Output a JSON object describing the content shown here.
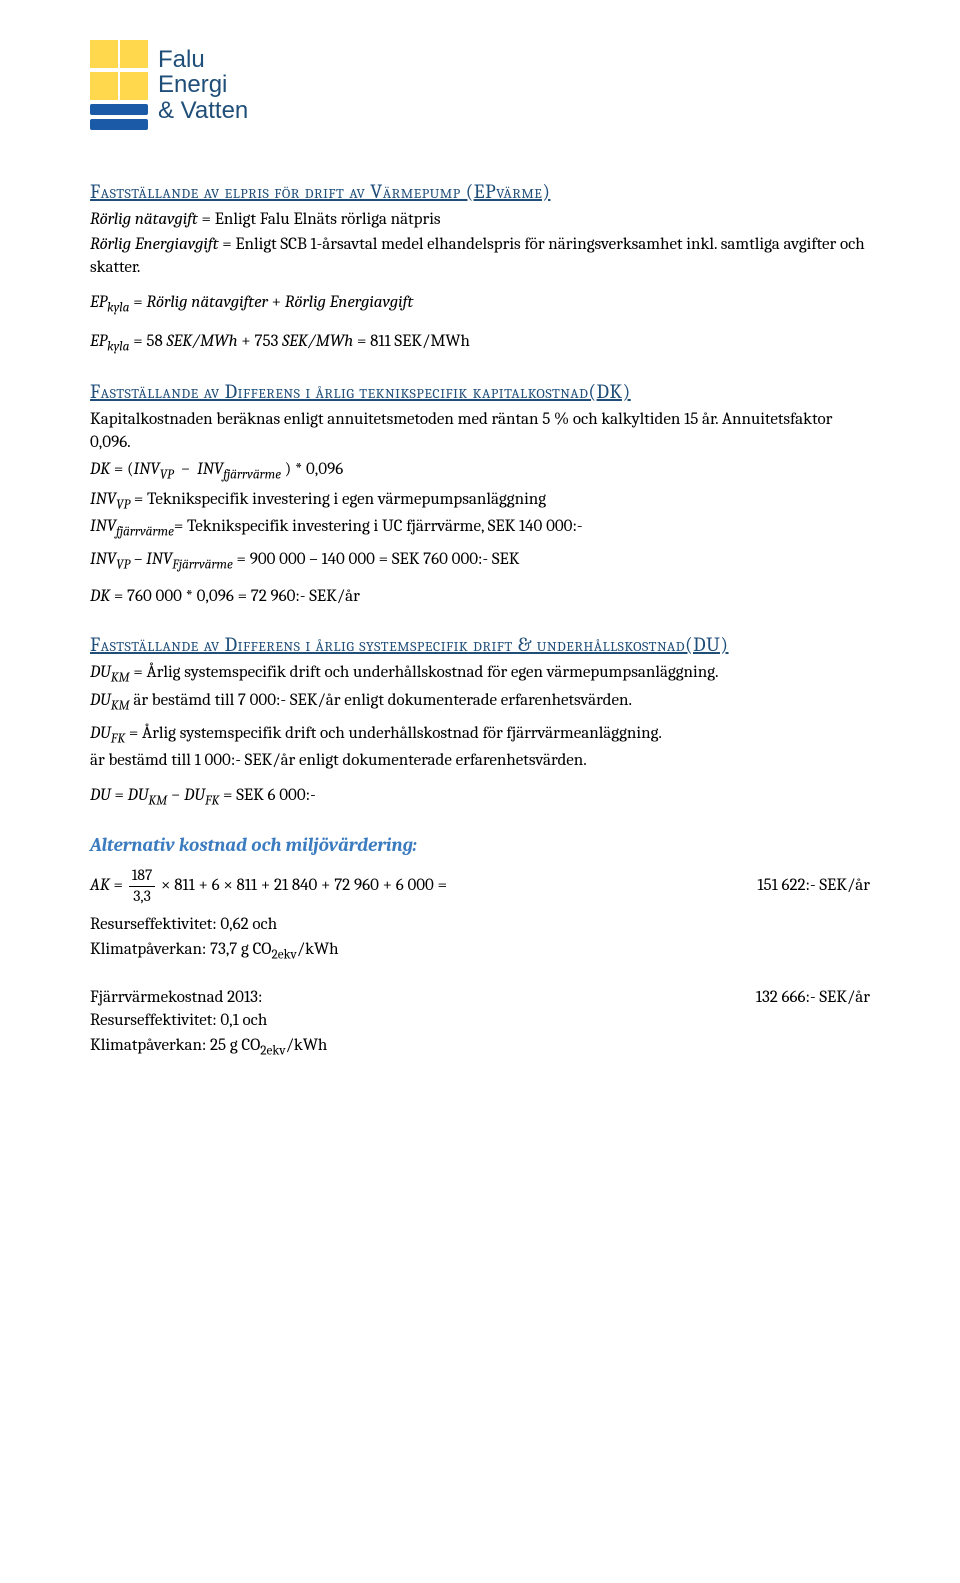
{
  "logo": {
    "line1": "Falu",
    "line2": "Energi",
    "line3": "& Vatten"
  },
  "s1": {
    "heading": "Fastställande av elpris för drift av Värmepump (EPvärme)",
    "line1_label": "Rörlig nätavgift",
    "line1_text": " = Enligt Falu Elnäts rörliga nätpris",
    "line2_label": "Rörlig Energiavgift",
    "line2_text": " = Enligt SCB 1-årsavtal medel elhandelspris för näringsverksamhet inkl. samtliga avgifter och skatter.",
    "eq1": "EP_{kyla} = Rörlig nätavgifter + Rörlig Energiavgift",
    "eq2_lhs": "EP",
    "eq2_sub": "kyla",
    "eq2_mid": " = 58 SEK/MWh + 753 SEK/MWh = ",
    "eq2_res": "811 SEK/MWh"
  },
  "s2": {
    "heading": "Fastställande av Differens i årlig teknikspecifik kapitalkostnad(DK)",
    "p1": "Kapitalkostnaden beräknas enligt annuitetsmetoden med räntan 5 % och kalkyltiden 15 år. Annuitetsfaktor 0,096.",
    "eq_dk": "DK = (INV_{VP} − INV_{fjärrvärme}) * 0,096",
    "inv_vp_label": "INV",
    "inv_vp_sub": "VP",
    "inv_vp_text": " = Teknikspecifik investering i egen värmepumpsanläggning",
    "inv_fj_label": "INV",
    "inv_fj_sub": "fjärrvärme",
    "inv_fj_text": "= Teknikspecifik investering i UC fjärrvärme, SEK 140 000:-",
    "diff_line": " = 900 000 – 140 000 = SEK 760 000:- SEK",
    "dk_calc": "DK = 760 000 * 0,096 = 72 960:- SEK/år"
  },
  "s3": {
    "heading": "Fastställande av Differens i årlig systemspecifik drift & underhållskostnad(DU)",
    "du_km_label": "DU",
    "du_km_sub": "KM",
    "du_km_text1": " = Årlig systemspecifik drift och underhållskostnad för egen värmepumpsanläggning.",
    "du_km_text2": " är bestämd till 7 000:- SEK/år enligt dokumenterade erfarenhetsvärden.",
    "du_fk_label": "DU",
    "du_fk_sub": "FK",
    "du_fk_text1": " = Årlig systemspecifik drift och underhållskostnad för fjärrvärmeanläggning.",
    "du_fk_text2": "är bestämd till 1 000:- SEK/år enligt dokumenterade erfarenhetsvärden.",
    "du_eq": " = SEK 6 000:-"
  },
  "alt": {
    "heading": "Alternativ kostnad och miljövärdering:",
    "ak_lhs": "AK = ",
    "frac_num": "187",
    "frac_den": "3,3",
    "ak_mid": " × 811 + 6 × 811 + 21 840 + 72 960 + 6 000",
    "ak_eq": "   =",
    "ak_res": "151 622:- SEK/år",
    "re1": "Resurseffektivitet: 0,62 och",
    "kp1": "Klimatpåverkan: 73,7 g CO",
    "kp1_sub": "2ekv",
    "kp1_tail": "/kWh",
    "fj_label": "Fjärrvärmekostnad 2013:",
    "fj_val": "132 666:- SEK/år",
    "re2": "Resurseffektivitet: 0,1 och",
    "kp2": "Klimatpåverkan: 25 g CO",
    "kp2_sub": "2ekv",
    "kp2_tail": "/kWh"
  }
}
